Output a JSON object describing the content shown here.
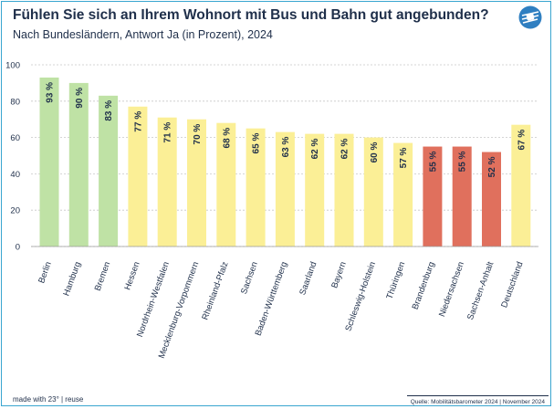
{
  "header": {
    "title": "Fühlen Sie sich an Ihrem Wohnort mit Bus und Bahn gut angebunden?",
    "subtitle": "Nach Bundesländern, Antwort Ja (in Prozent), 2024"
  },
  "logo": {
    "icon": "tram-logo-icon"
  },
  "footer": {
    "made_with": "made with 23° | reuse",
    "source": "Quelle: Mobilitätsbarometer 2024 | November 2024"
  },
  "colors": {
    "green": "#bfe2a5",
    "yellow": "#fbef96",
    "red": "#e0705d",
    "axis_text": "#1f2f4a",
    "grid": "#c8c8c8"
  },
  "chart_data": {
    "type": "bar",
    "title": "Fühlen Sie sich an Ihrem Wohnort mit Bus und Bahn gut angebunden?",
    "subtitle": "Nach Bundesländern, Antwort Ja (in Prozent), 2024",
    "xlabel": "",
    "ylabel": "",
    "ylim": [
      0,
      100
    ],
    "yticks": [
      0,
      20,
      40,
      60,
      80,
      100
    ],
    "grid": true,
    "categories": [
      "Berlin",
      "Hamburg",
      "Bremen",
      "Hessen",
      "Nordrhein-Westfalen",
      "Mecklenburg-Vorpommern",
      "Rheinland-Pfalz",
      "Sachsen",
      "Baden-Württemberg",
      "Saarland",
      "Bayern",
      "Schleswig-Holstein",
      "Thüringen",
      "Brandenburg",
      "Niedersachsen",
      "Sachsen-Anhalt",
      "Deutschland"
    ],
    "values": [
      93,
      90,
      83,
      77,
      71,
      70,
      68,
      65,
      63,
      62,
      62,
      60,
      57,
      55,
      55,
      52,
      67
    ],
    "value_labels": [
      "93 %",
      "90 %",
      "83 %",
      "77 %",
      "71 %",
      "70 %",
      "68 %",
      "65 %",
      "63 %",
      "62 %",
      "62 %",
      "60 %",
      "57 %",
      "55 %",
      "55 %",
      "52 %",
      "67 %"
    ],
    "bar_colors": [
      "green",
      "green",
      "green",
      "yellow",
      "yellow",
      "yellow",
      "yellow",
      "yellow",
      "yellow",
      "yellow",
      "yellow",
      "yellow",
      "yellow",
      "red",
      "red",
      "red",
      "yellow"
    ]
  }
}
